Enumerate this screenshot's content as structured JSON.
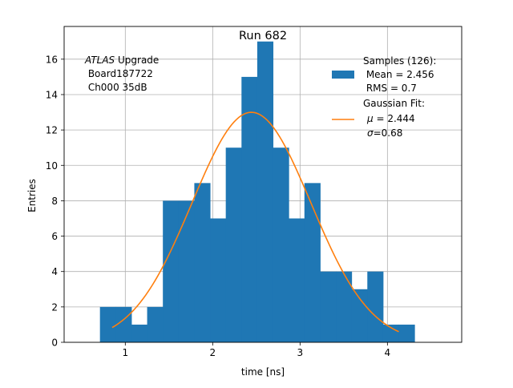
{
  "chart_data": {
    "type": "bar",
    "title": "Run 682",
    "xlabel": "time [ns]",
    "ylabel": "Entries",
    "xlim": [
      0.3,
      4.85
    ],
    "ylim": [
      0,
      17.85
    ],
    "grid": true,
    "x_ticks": [
      1,
      2,
      3,
      4
    ],
    "y_ticks": [
      0,
      2,
      4,
      6,
      8,
      10,
      12,
      14,
      16
    ],
    "annotation": {
      "italic": "ATLAS",
      "rest": " Upgrade",
      "line2": " Board187722",
      "line3": " Ch000 35dB"
    },
    "histogram": {
      "bin_edges": [
        0.71,
        0.89,
        1.07,
        1.25,
        1.43,
        1.61,
        1.79,
        1.97,
        2.15,
        2.33,
        2.51,
        2.69,
        2.87,
        3.05,
        3.23,
        3.41,
        3.59,
        3.77,
        3.95,
        4.13,
        4.31
      ],
      "counts": [
        2,
        2,
        1,
        2,
        8,
        8,
        9,
        7,
        11,
        15,
        17,
        11,
        7,
        9,
        4,
        4,
        3,
        4,
        1,
        1
      ],
      "color": "#1f77b4"
    },
    "fit": {
      "mu": 2.444,
      "sigma": 0.68,
      "amplitude": 13.0,
      "x_range": [
        0.85,
        4.13
      ],
      "color": "#ff7f0e"
    },
    "legend": {
      "position": "top-right",
      "samples": [
        "Samples (126):",
        " Mean = 2.456",
        " RMS = 0.7"
      ],
      "fit_title": "Gaussian Fit:",
      "fit_mu_sym": "μ",
      "fit_mu_val": " = 2.444",
      "fit_sigma_sym": "σ",
      "fit_sigma_val": "=0.68"
    }
  }
}
